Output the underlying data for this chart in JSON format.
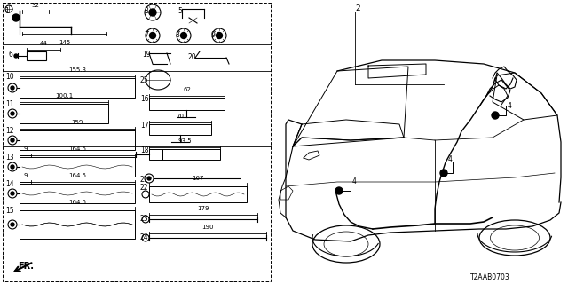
{
  "bg_color": "#ffffff",
  "diagram_id": "T2AAB0703"
}
